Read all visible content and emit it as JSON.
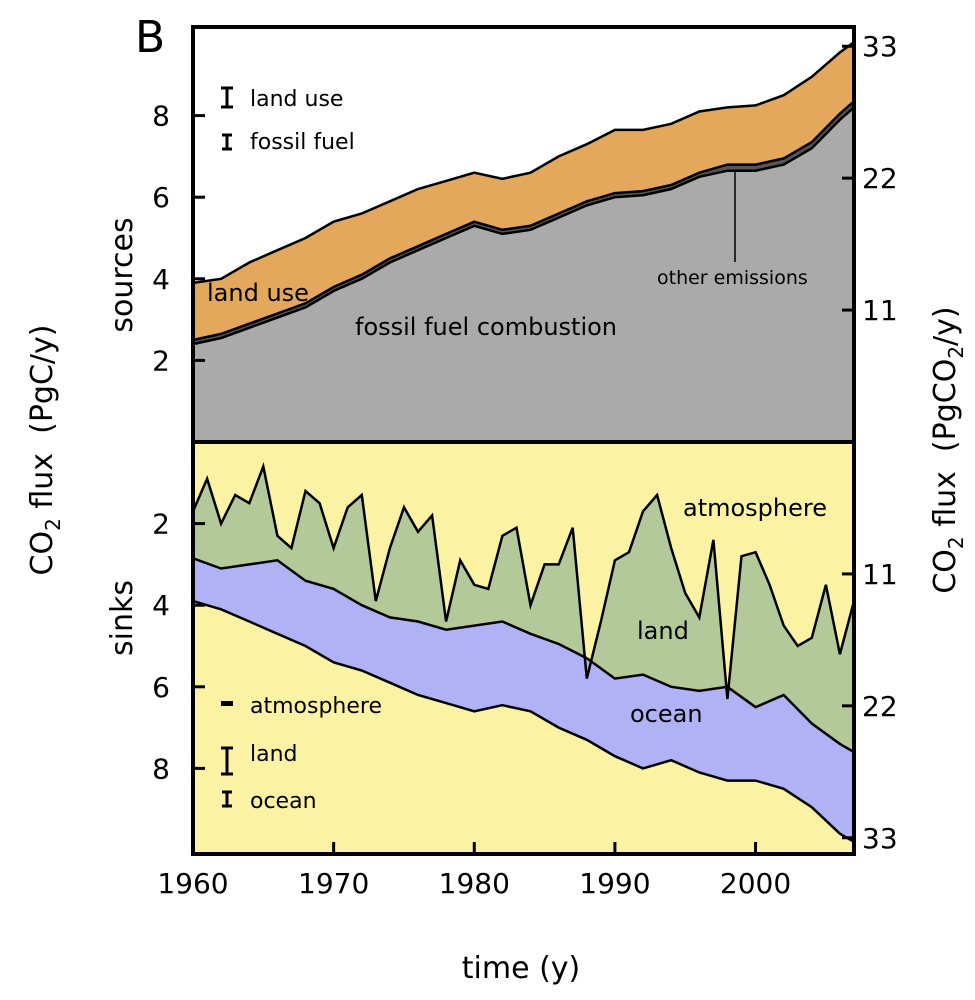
{
  "panel_label": "B",
  "chart_data": {
    "type": "area",
    "xlabel": "time (y)",
    "ylabel_left": "CO2 flux (PgC/y)",
    "ylabel_left_parts": [
      "CO",
      "2",
      " flux  (PgC/y)"
    ],
    "ylabel_right": "CO2 flux (PgCO2/y)",
    "ylabel_right_parts": [
      "CO",
      "2",
      " flux  (PgCO",
      "2",
      "/y)"
    ],
    "xlim": [
      1960,
      2007
    ],
    "x_ticks": [
      1960,
      1970,
      1980,
      1990,
      2000
    ],
    "x_tick_labels": [
      "1960",
      "1970",
      "1980",
      "1990",
      "2000"
    ],
    "sources_panel": {
      "label": "sources",
      "ylim": [
        0,
        10
      ],
      "left_ticks": [
        2,
        4,
        6,
        8
      ],
      "left_tick_labels": [
        "2",
        "4",
        "6",
        "8"
      ],
      "right_ticks_pgc": [
        3,
        6,
        9
      ],
      "right_tick_labels": [
        "11",
        "22",
        "33"
      ],
      "series": [
        {
          "name": "fossil fuel combustion",
          "color": "#aaaaaa",
          "x": [
            1960,
            1962,
            1964,
            1966,
            1968,
            1970,
            1972,
            1974,
            1976,
            1978,
            1980,
            1982,
            1984,
            1986,
            1988,
            1990,
            1992,
            1994,
            1996,
            1998,
            2000,
            2002,
            2004,
            2006,
            2007
          ],
          "top": [
            2.4,
            2.55,
            2.8,
            3.05,
            3.3,
            3.7,
            4.0,
            4.4,
            4.7,
            5.0,
            5.3,
            5.1,
            5.2,
            5.5,
            5.8,
            6.0,
            6.05,
            6.2,
            6.5,
            6.65,
            6.65,
            6.8,
            7.2,
            7.9,
            8.2
          ]
        },
        {
          "name": "other emissions",
          "color": "#555555",
          "x": [
            1960,
            1962,
            1964,
            1966,
            1968,
            1970,
            1972,
            1974,
            1976,
            1978,
            1980,
            1982,
            1984,
            1986,
            1988,
            1990,
            1992,
            1994,
            1996,
            1998,
            2000,
            2002,
            2004,
            2006,
            2007
          ],
          "top": [
            2.5,
            2.65,
            2.9,
            3.15,
            3.4,
            3.8,
            4.1,
            4.5,
            4.8,
            5.1,
            5.4,
            5.2,
            5.3,
            5.6,
            5.9,
            6.1,
            6.15,
            6.3,
            6.6,
            6.8,
            6.8,
            6.95,
            7.35,
            8.05,
            8.35
          ]
        },
        {
          "name": "land use",
          "color": "#e3a85c",
          "x": [
            1960,
            1962,
            1964,
            1966,
            1968,
            1970,
            1972,
            1974,
            1976,
            1978,
            1980,
            1982,
            1984,
            1986,
            1988,
            1990,
            1992,
            1994,
            1996,
            1998,
            2000,
            2002,
            2004,
            2006,
            2007
          ],
          "top": [
            3.9,
            4.0,
            4.4,
            4.7,
            5.0,
            5.4,
            5.6,
            5.9,
            6.2,
            6.4,
            6.6,
            6.45,
            6.6,
            7.0,
            7.3,
            7.65,
            7.65,
            7.8,
            8.1,
            8.2,
            8.25,
            8.5,
            8.95,
            9.55,
            9.8
          ]
        }
      ],
      "annotations": [
        {
          "text": "land use"
        },
        {
          "text": "fossil fuel combustion"
        },
        {
          "text": "other emissions"
        }
      ],
      "legend": [
        {
          "marker": "error-bar",
          "text": "land use"
        },
        {
          "marker": "error-bar",
          "text": "fossil fuel"
        }
      ]
    },
    "sinks_panel": {
      "label": "sinks",
      "ylim": [
        0,
        10
      ],
      "inverted": true,
      "left_ticks": [
        2,
        4,
        6,
        8
      ],
      "left_tick_labels": [
        "2",
        "4",
        "6",
        "8"
      ],
      "right_ticks_pgc": [
        3,
        6,
        9
      ],
      "right_tick_labels": [
        "11",
        "22",
        "33"
      ],
      "series": [
        {
          "name": "atmosphere",
          "color": "#fbf2a4",
          "x": [
            1960,
            2007
          ],
          "bottom": [
            0,
            0
          ]
        },
        {
          "name": "land",
          "color": "#b3c999",
          "x": [
            1960,
            1961,
            1962,
            1963,
            1964,
            1965,
            1966,
            1967,
            1968,
            1969,
            1970,
            1971,
            1972,
            1973,
            1974,
            1975,
            1976,
            1977,
            1978,
            1979,
            1980,
            1981,
            1982,
            1983,
            1984,
            1985,
            1986,
            1987,
            1988,
            1989,
            1990,
            1991,
            1992,
            1993,
            1994,
            1995,
            1996,
            1997,
            1998,
            1999,
            2000,
            2001,
            2002,
            2003,
            2004,
            2005,
            2006,
            2007
          ],
          "bottom": [
            1.7,
            0.9,
            2.0,
            1.3,
            1.5,
            0.6,
            2.3,
            2.6,
            1.2,
            1.5,
            2.6,
            1.6,
            1.3,
            3.9,
            2.6,
            1.6,
            2.2,
            1.8,
            4.4,
            2.9,
            3.5,
            3.6,
            2.3,
            2.1,
            4.0,
            3.0,
            3.0,
            2.1,
            5.8,
            4.4,
            2.9,
            2.7,
            1.7,
            1.3,
            2.6,
            3.7,
            4.3,
            2.4,
            6.3,
            2.8,
            2.7,
            3.5,
            4.5,
            5.0,
            4.8,
            3.5,
            5.2,
            3.9
          ]
        },
        {
          "name": "ocean",
          "color": "#b1b1f6",
          "x": [
            1960,
            1962,
            1964,
            1966,
            1968,
            1970,
            1972,
            1974,
            1976,
            1978,
            1980,
            1982,
            1984,
            1986,
            1988,
            1990,
            1992,
            1994,
            1996,
            1998,
            2000,
            2002,
            2004,
            2006,
            2007
          ],
          "bottom": [
            2.85,
            3.1,
            3.0,
            2.9,
            3.4,
            3.6,
            4.0,
            4.3,
            4.4,
            4.6,
            4.5,
            4.4,
            4.7,
            4.95,
            5.3,
            5.8,
            5.7,
            6.0,
            6.1,
            6.0,
            6.5,
            6.2,
            6.9,
            7.4,
            7.6
          ],
          "total": [
            3.9,
            4.1,
            4.4,
            4.7,
            5.0,
            5.4,
            5.6,
            5.9,
            6.2,
            6.4,
            6.6,
            6.45,
            6.6,
            7.0,
            7.3,
            7.7,
            8.0,
            7.8,
            8.1,
            8.3,
            8.3,
            8.5,
            8.95,
            9.6,
            9.8
          ]
        }
      ],
      "annotations": [
        {
          "text": "atmosphere"
        },
        {
          "text": "land"
        },
        {
          "text": "ocean"
        }
      ],
      "legend": [
        {
          "marker": "dash",
          "text": "atmosphere"
        },
        {
          "marker": "error-bar",
          "text": "land"
        },
        {
          "marker": "error-bar",
          "text": "ocean"
        }
      ]
    }
  }
}
